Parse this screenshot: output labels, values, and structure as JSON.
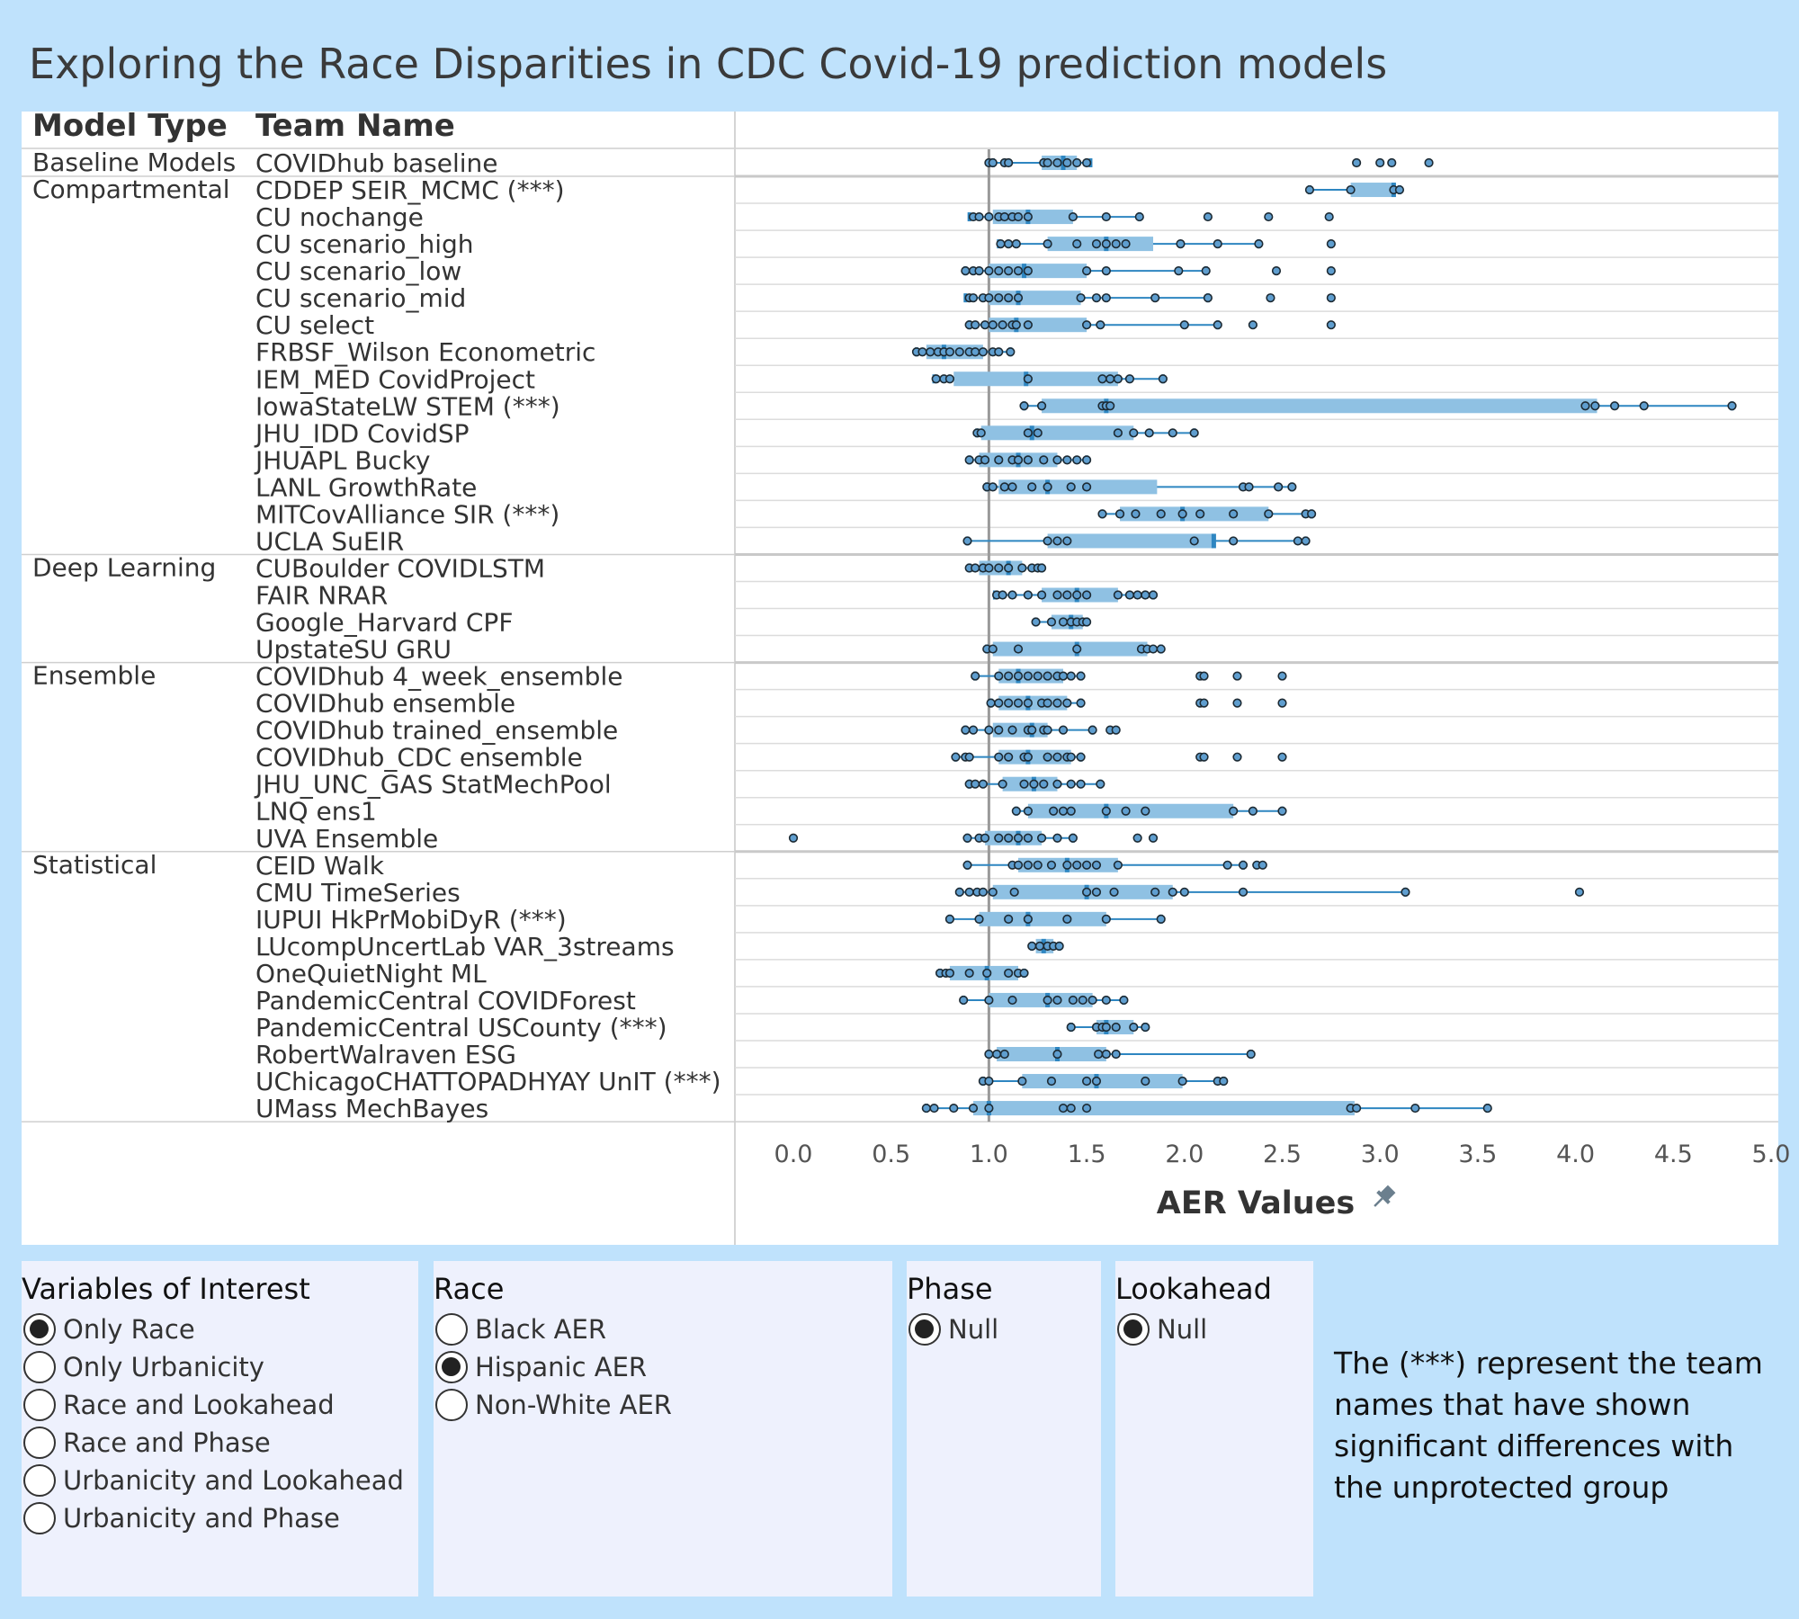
{
  "title": "Exploring the Race Disparities in CDC Covid-19 prediction models",
  "chart_data": {
    "type": "boxplot",
    "xlabel": "AER Values",
    "xlim": [
      0.0,
      5.0
    ],
    "xticks": [
      "0.0",
      "0.5",
      "1.0",
      "1.5",
      "2.0",
      "2.5",
      "3.0",
      "3.5",
      "4.0",
      "4.5",
      "5.0"
    ],
    "reference_line": 1.0,
    "col_headers": [
      "Model Type",
      "Team Name"
    ],
    "groups": [
      {
        "name": "Baseline Models",
        "rows": [
          {
            "team": "COVIDhub baseline",
            "box": [
              1.02,
              1.27,
              1.38,
              1.45,
              1.52
            ],
            "points": [
              1.0,
              1.02,
              1.08,
              1.1,
              1.28,
              1.3,
              1.35,
              1.4,
              1.45,
              1.5,
              2.88,
              3.0,
              3.06,
              3.25
            ]
          }
        ]
      },
      {
        "name": "Compartmental",
        "rows": [
          {
            "team": "CDDEP SEIR_MCMC (***)",
            "box": [
              2.64,
              2.85,
              3.07,
              3.08,
              3.1
            ],
            "points": [
              2.64,
              2.85,
              3.07,
              3.1
            ]
          },
          {
            "team": "CU nochange",
            "box": [
              0.9,
              1.02,
              1.2,
              1.43,
              1.77
            ],
            "points": [
              0.92,
              0.95,
              1.0,
              1.05,
              1.08,
              1.12,
              1.15,
              1.2,
              1.43,
              1.6,
              1.77,
              2.12,
              2.43,
              2.74
            ]
          },
          {
            "team": "CU scenario_high",
            "box": [
              1.05,
              1.3,
              1.6,
              1.84,
              2.38
            ],
            "points": [
              1.06,
              1.1,
              1.14,
              1.3,
              1.45,
              1.55,
              1.6,
              1.65,
              1.7,
              1.98,
              2.17,
              2.38,
              2.75
            ]
          },
          {
            "team": "CU scenario_low",
            "box": [
              0.88,
              1.0,
              1.18,
              1.5,
              2.11
            ],
            "points": [
              0.88,
              0.92,
              0.95,
              1.0,
              1.05,
              1.1,
              1.15,
              1.2,
              1.5,
              1.6,
              1.97,
              2.11,
              2.47,
              2.75
            ]
          },
          {
            "team": "CU scenario_mid",
            "box": [
              0.88,
              1.0,
              1.15,
              1.47,
              2.12
            ],
            "points": [
              0.9,
              0.92,
              0.97,
              1.0,
              1.05,
              1.1,
              1.15,
              1.47,
              1.55,
              1.6,
              1.85,
              2.12,
              2.44,
              2.75
            ]
          },
          {
            "team": "CU select",
            "box": [
              0.9,
              1.0,
              1.14,
              1.5,
              2.17
            ],
            "points": [
              0.9,
              0.93,
              0.98,
              1.02,
              1.07,
              1.12,
              1.14,
              1.2,
              1.5,
              1.57,
              2.0,
              2.17,
              2.35,
              2.75
            ]
          },
          {
            "team": "FRBSF_Wilson Econometric",
            "box": [
              0.63,
              0.68,
              0.77,
              0.97,
              1.11
            ],
            "points": [
              0.63,
              0.66,
              0.7,
              0.74,
              0.77,
              0.8,
              0.85,
              0.9,
              0.93,
              0.97,
              1.02,
              1.05,
              1.11
            ]
          },
          {
            "team": "IEM_MED CovidProject",
            "box": [
              0.72,
              0.82,
              1.19,
              1.66,
              1.89
            ],
            "points": [
              0.73,
              0.77,
              0.8,
              1.2,
              1.58,
              1.62,
              1.66,
              1.72,
              1.89
            ]
          },
          {
            "team": "IowaStateLW STEM (***)",
            "box": [
              1.18,
              1.27,
              1.6,
              4.11,
              4.8
            ],
            "points": [
              1.18,
              1.27,
              1.58,
              1.6,
              1.62,
              4.05,
              4.1,
              4.2,
              4.35,
              4.8
            ]
          },
          {
            "team": "JHU_IDD CovidSP",
            "box": [
              0.94,
              0.96,
              1.22,
              1.74,
              2.05
            ],
            "points": [
              0.94,
              0.96,
              1.2,
              1.25,
              1.66,
              1.74,
              1.82,
              1.94,
              2.05
            ]
          },
          {
            "team": "JHUAPL Bucky",
            "box": [
              0.9,
              0.95,
              1.15,
              1.35,
              1.5
            ],
            "points": [
              0.9,
              0.95,
              0.98,
              1.05,
              1.12,
              1.15,
              1.2,
              1.28,
              1.35,
              1.4,
              1.45,
              1.5
            ]
          },
          {
            "team": "LANL GrowthRate",
            "box": [
              0.99,
              1.05,
              1.3,
              1.86,
              2.55
            ],
            "points": [
              0.99,
              1.02,
              1.08,
              1.12,
              1.22,
              1.3,
              1.42,
              1.5,
              2.3,
              2.33,
              2.48,
              2.55
            ]
          },
          {
            "team": "MITCovAlliance SIR (***)",
            "box": [
              1.58,
              1.67,
              1.99,
              2.43,
              2.65
            ],
            "points": [
              1.58,
              1.67,
              1.75,
              1.88,
              1.99,
              2.08,
              2.25,
              2.43,
              2.62,
              2.65
            ]
          },
          {
            "team": "UCLA SuEIR",
            "box": [
              0.89,
              1.3,
              2.15,
              2.15,
              2.62
            ],
            "points": [
              0.89,
              1.3,
              1.35,
              1.4,
              2.05,
              2.25,
              2.58,
              2.62
            ]
          }
        ]
      },
      {
        "name": "Deep Learning",
        "rows": [
          {
            "team": "CUBoulder COVIDLSTM",
            "box": [
              0.9,
              0.95,
              1.1,
              1.17,
              1.27
            ],
            "points": [
              0.9,
              0.93,
              0.97,
              1.0,
              1.05,
              1.1,
              1.17,
              1.22,
              1.25,
              1.27
            ]
          },
          {
            "team": "FAIR NRAR",
            "box": [
              1.03,
              1.27,
              1.45,
              1.66,
              1.84
            ],
            "points": [
              1.04,
              1.07,
              1.12,
              1.2,
              1.27,
              1.35,
              1.4,
              1.45,
              1.5,
              1.66,
              1.72,
              1.76,
              1.8,
              1.84
            ]
          },
          {
            "team": "Google_Harvard CPF",
            "box": [
              1.24,
              1.32,
              1.42,
              1.48,
              1.5
            ],
            "points": [
              1.24,
              1.32,
              1.38,
              1.42,
              1.45,
              1.48,
              1.5
            ]
          },
          {
            "team": "UpstateSU GRU",
            "box": [
              0.99,
              1.02,
              1.45,
              1.81,
              1.88
            ],
            "points": [
              0.99,
              1.02,
              1.15,
              1.45,
              1.78,
              1.81,
              1.84,
              1.88
            ]
          }
        ]
      },
      {
        "name": "Ensemble",
        "rows": [
          {
            "team": "COVIDhub 4_week_ensemble",
            "box": [
              0.93,
              1.05,
              1.15,
              1.38,
              1.47
            ],
            "points": [
              0.93,
              1.05,
              1.1,
              1.15,
              1.2,
              1.25,
              1.3,
              1.35,
              1.38,
              1.42,
              1.47,
              2.08,
              2.1,
              2.27,
              2.5
            ]
          },
          {
            "team": "COVIDhub ensemble",
            "box": [
              1.01,
              1.05,
              1.2,
              1.4,
              1.47
            ],
            "points": [
              1.01,
              1.05,
              1.1,
              1.15,
              1.2,
              1.27,
              1.3,
              1.35,
              1.4,
              1.47,
              2.08,
              2.1,
              2.27,
              2.5
            ]
          },
          {
            "team": "COVIDhub trained_ensemble",
            "box": [
              0.88,
              1.02,
              1.22,
              1.3,
              1.53
            ],
            "points": [
              0.88,
              0.92,
              1.0,
              1.05,
              1.12,
              1.2,
              1.22,
              1.28,
              1.3,
              1.38,
              1.53,
              1.62,
              1.65
            ]
          },
          {
            "team": "COVIDhub_CDC ensemble",
            "box": [
              0.83,
              1.05,
              1.2,
              1.42,
              1.47
            ],
            "points": [
              0.83,
              0.88,
              0.9,
              1.05,
              1.1,
              1.18,
              1.2,
              1.3,
              1.35,
              1.4,
              1.42,
              1.47,
              2.08,
              2.1,
              2.27,
              2.5
            ]
          },
          {
            "team": "JHU_UNC_GAS StatMechPool",
            "box": [
              0.9,
              1.07,
              1.23,
              1.35,
              1.57
            ],
            "points": [
              0.9,
              0.93,
              0.97,
              1.07,
              1.18,
              1.23,
              1.28,
              1.35,
              1.42,
              1.47,
              1.57
            ]
          },
          {
            "team": "LNQ ens1",
            "box": [
              1.14,
              1.2,
              1.6,
              2.25,
              2.5
            ],
            "points": [
              1.14,
              1.2,
              1.33,
              1.38,
              1.42,
              1.6,
              1.7,
              1.8,
              2.25,
              2.35,
              2.5
            ]
          },
          {
            "team": "UVA Ensemble",
            "box": [
              0.89,
              0.98,
              1.15,
              1.27,
              1.43
            ],
            "points": [
              0.0,
              0.89,
              0.95,
              0.98,
              1.05,
              1.1,
              1.15,
              1.2,
              1.27,
              1.35,
              1.43,
              1.76,
              1.84
            ]
          }
        ]
      },
      {
        "name": "Statistical",
        "rows": [
          {
            "team": "CEID Walk",
            "box": [
              0.89,
              1.15,
              1.4,
              1.66,
              2.3
            ],
            "points": [
              0.89,
              1.12,
              1.15,
              1.2,
              1.25,
              1.32,
              1.4,
              1.45,
              1.5,
              1.55,
              1.66,
              2.22,
              2.3,
              2.37,
              2.4
            ]
          },
          {
            "team": "CMU TimeSeries",
            "box": [
              0.85,
              1.02,
              1.5,
              1.94,
              3.13
            ],
            "points": [
              0.85,
              0.9,
              0.94,
              0.97,
              1.02,
              1.13,
              1.5,
              1.55,
              1.64,
              1.85,
              1.94,
              2.0,
              2.3,
              3.13,
              4.02
            ]
          },
          {
            "team": "IUPUI HkPrMobiDyR (***)",
            "box": [
              0.8,
              0.95,
              1.2,
              1.6,
              1.88
            ],
            "points": [
              0.8,
              0.95,
              1.1,
              1.2,
              1.4,
              1.6,
              1.88
            ]
          },
          {
            "team": "LUcompUncertLab VAR_3streams",
            "box": [
              1.22,
              1.24,
              1.28,
              1.33,
              1.36
            ],
            "points": [
              1.22,
              1.26,
              1.3,
              1.33,
              1.36
            ]
          },
          {
            "team": "OneQuietNight ML",
            "box": [
              0.75,
              0.8,
              0.99,
              1.15,
              1.18
            ],
            "points": [
              0.75,
              0.78,
              0.8,
              0.9,
              0.99,
              1.1,
              1.15,
              1.18
            ]
          },
          {
            "team": "PandemicCentral COVIDForest",
            "box": [
              0.87,
              1.0,
              1.3,
              1.53,
              1.69
            ],
            "points": [
              0.87,
              1.0,
              1.12,
              1.3,
              1.35,
              1.43,
              1.48,
              1.53,
              1.6,
              1.69
            ]
          },
          {
            "team": "PandemicCentral USCounty (***)",
            "box": [
              1.42,
              1.55,
              1.6,
              1.74,
              1.8
            ],
            "points": [
              1.42,
              1.55,
              1.58,
              1.6,
              1.65,
              1.74,
              1.8
            ]
          },
          {
            "team": "RobertWalraven ESG",
            "box": [
              1.0,
              1.04,
              1.35,
              1.6,
              2.34
            ],
            "points": [
              1.0,
              1.04,
              1.08,
              1.35,
              1.56,
              1.6,
              1.65,
              2.34
            ]
          },
          {
            "team": "UChicagoCHATTOPADHYAY UnIT (***)",
            "box": [
              0.97,
              1.17,
              1.55,
              1.99,
              2.2
            ],
            "points": [
              0.97,
              1.0,
              1.17,
              1.32,
              1.5,
              1.55,
              1.8,
              1.99,
              2.17,
              2.2
            ]
          },
          {
            "team": "UMass MechBayes",
            "box": [
              0.68,
              0.92,
              1.0,
              2.87,
              3.55
            ],
            "points": [
              0.68,
              0.72,
              0.82,
              0.92,
              1.0,
              1.38,
              1.42,
              1.5,
              2.85,
              2.88,
              3.18,
              3.55
            ]
          }
        ]
      }
    ]
  },
  "pin_icon": "pin-icon",
  "colors": {
    "box": "#8fc1e3",
    "whisker": "#2e86c1",
    "median": "#2e86c1",
    "point_fill": "#5f9ecf",
    "point_stroke": "#1d2a33",
    "refline": "#9a9a9a"
  },
  "panels": {
    "variables": {
      "title": "Variables of Interest",
      "options": [
        "Only Race",
        "Only Urbanicity",
        "Race and Lookahead",
        "Race and Phase",
        "Urbanicity and Lookahead",
        "Urbanicity and Phase"
      ],
      "selected": "Only Race"
    },
    "race": {
      "title": "Race",
      "options": [
        "Black AER",
        "Hispanic AER",
        "Non-White AER"
      ],
      "selected": "Hispanic AER"
    },
    "phase": {
      "title": "Phase",
      "options": [
        "Null"
      ],
      "selected": "Null"
    },
    "lookahead": {
      "title": "Lookahead",
      "options": [
        "Null"
      ],
      "selected": "Null"
    }
  },
  "note": "The (***) represent the team names that have shown significant differences with the unprotected group"
}
